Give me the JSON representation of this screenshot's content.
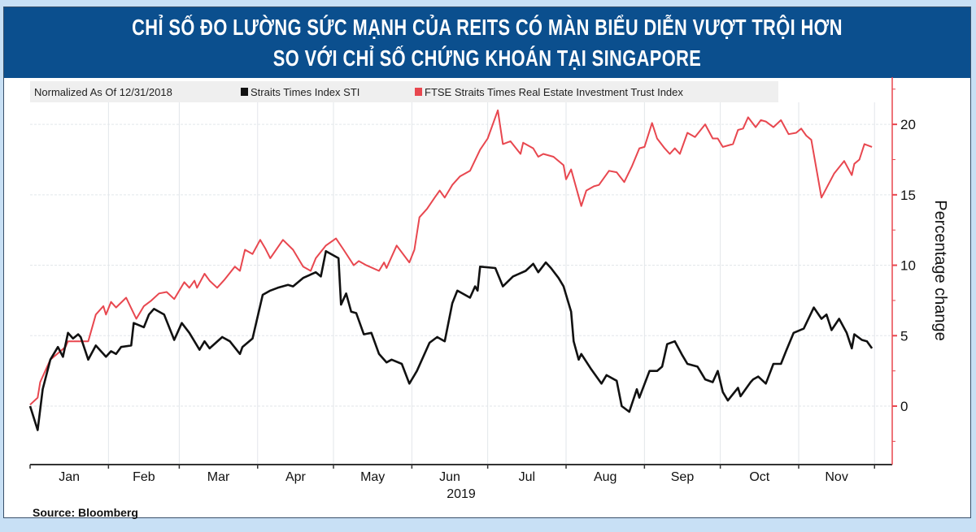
{
  "header": {
    "title_line1": "CHỈ SỐ ĐO LƯỜNG SỨC MẠNH CỦA REITS CÓ MÀN BIỂU DIỄN VƯỢT TRỘI HƠN",
    "title_line2": "SO VỚI CHỈ SỐ CHỨNG KHOÁN TẠI SINGAPORE"
  },
  "source": "Source: Bloomberg",
  "colors": {
    "title_bar": "#0b4f8e",
    "background": "#c8e0f5",
    "sti": "#111111",
    "reit": "#e8474f",
    "axis": "#e8474f"
  },
  "chart_data": {
    "type": "line",
    "legend_note": "Normalized As Of 12/31/2018",
    "legend_position": "top-left",
    "xlabel": "2019",
    "ylabel": "Percentage change",
    "x_ticks": [
      "Jan",
      "Feb",
      "Mar",
      "Apr",
      "May",
      "Jun",
      "Jul",
      "Aug",
      "Sep",
      "Oct",
      "Nov"
    ],
    "xlim": [
      "2019-01-01",
      "2019-12-08"
    ],
    "ylim": [
      -4.15,
      23.35
    ],
    "y_ticks": [
      0,
      5,
      10,
      15,
      20
    ],
    "grid": true,
    "y_axis_side": "right",
    "series": [
      {
        "name": "Straits Times Index STI",
        "color": "#111111",
        "points": [
          [
            "2019-01-01",
            0
          ],
          [
            "2019-01-04",
            -1.7
          ],
          [
            "2019-01-06",
            1.2
          ],
          [
            "2019-01-09",
            3.3
          ],
          [
            "2019-01-12",
            4.2
          ],
          [
            "2019-01-14",
            3.5
          ],
          [
            "2019-01-16",
            5.2
          ],
          [
            "2019-01-18",
            4.8
          ],
          [
            "2019-01-20",
            5.1
          ],
          [
            "2019-01-21",
            4.9
          ],
          [
            "2019-01-24",
            3.3
          ],
          [
            "2019-01-27",
            4.3
          ],
          [
            "2019-01-31",
            3.5
          ],
          [
            "2019-02-02",
            3.9
          ],
          [
            "2019-02-04",
            3.7
          ],
          [
            "2019-02-06",
            4.2
          ],
          [
            "2019-02-10",
            4.3
          ],
          [
            "2019-02-11",
            5.9
          ],
          [
            "2019-02-15",
            5.6
          ],
          [
            "2019-02-17",
            6.5
          ],
          [
            "2019-02-19",
            6.9
          ],
          [
            "2019-02-23",
            6.5
          ],
          [
            "2019-02-27",
            4.7
          ],
          [
            "2019-03-02",
            5.9
          ],
          [
            "2019-03-05",
            5.2
          ],
          [
            "2019-03-09",
            4.0
          ],
          [
            "2019-03-11",
            4.6
          ],
          [
            "2019-03-13",
            4.1
          ],
          [
            "2019-03-18",
            4.9
          ],
          [
            "2019-03-21",
            4.6
          ],
          [
            "2019-03-25",
            3.7
          ],
          [
            "2019-03-26",
            4.2
          ],
          [
            "2019-03-30",
            4.8
          ],
          [
            "2019-04-03",
            7.9
          ],
          [
            "2019-04-06",
            8.2
          ],
          [
            "2019-04-09",
            8.4
          ],
          [
            "2019-04-13",
            8.6
          ],
          [
            "2019-04-15",
            8.5
          ],
          [
            "2019-04-19",
            9.1
          ],
          [
            "2019-04-24",
            9.5
          ],
          [
            "2019-04-26",
            9.2
          ],
          [
            "2019-04-28",
            11.0
          ],
          [
            "2019-05-03",
            10.5
          ],
          [
            "2019-05-04",
            7.2
          ],
          [
            "2019-05-06",
            8.0
          ],
          [
            "2019-05-08",
            6.7
          ],
          [
            "2019-05-10",
            6.6
          ],
          [
            "2019-05-13",
            5.1
          ],
          [
            "2019-05-16",
            5.2
          ],
          [
            "2019-05-19",
            3.7
          ],
          [
            "2019-05-22",
            3.1
          ],
          [
            "2019-05-24",
            3.3
          ],
          [
            "2019-05-28",
            3.0
          ],
          [
            "2019-05-31",
            1.6
          ],
          [
            "2019-06-03",
            2.5
          ],
          [
            "2019-06-08",
            4.5
          ],
          [
            "2019-06-11",
            4.9
          ],
          [
            "2019-06-14",
            4.6
          ],
          [
            "2019-06-17",
            7.3
          ],
          [
            "2019-06-19",
            8.2
          ],
          [
            "2019-06-24",
            7.7
          ],
          [
            "2019-06-26",
            8.5
          ],
          [
            "2019-06-27",
            8.2
          ],
          [
            "2019-06-28",
            9.9
          ],
          [
            "2019-07-04",
            9.8
          ],
          [
            "2019-07-07",
            8.5
          ],
          [
            "2019-07-11",
            9.2
          ],
          [
            "2019-07-16",
            9.6
          ],
          [
            "2019-07-19",
            10.1
          ],
          [
            "2019-07-21",
            9.5
          ],
          [
            "2019-07-24",
            10.2
          ],
          [
            "2019-07-26",
            9.8
          ],
          [
            "2019-07-29",
            9.1
          ],
          [
            "2019-07-31",
            8.5
          ],
          [
            "2019-08-03",
            6.7
          ],
          [
            "2019-08-04",
            4.6
          ],
          [
            "2019-08-06",
            3.3
          ],
          [
            "2019-08-07",
            3.7
          ],
          [
            "2019-08-11",
            2.6
          ],
          [
            "2019-08-15",
            1.6
          ],
          [
            "2019-08-17",
            2.2
          ],
          [
            "2019-08-21",
            1.8
          ],
          [
            "2019-08-23",
            0
          ],
          [
            "2019-08-26",
            -0.4
          ],
          [
            "2019-08-29",
            1.2
          ],
          [
            "2019-08-30",
            0.6
          ],
          [
            "2019-09-03",
            2.5
          ],
          [
            "2019-09-06",
            2.5
          ],
          [
            "2019-09-08",
            2.8
          ],
          [
            "2019-09-10",
            4.4
          ],
          [
            "2019-09-13",
            4.6
          ],
          [
            "2019-09-16",
            3.6
          ],
          [
            "2019-09-18",
            3.0
          ],
          [
            "2019-09-22",
            2.8
          ],
          [
            "2019-09-23",
            2.5
          ],
          [
            "2019-09-25",
            1.9
          ],
          [
            "2019-09-28",
            1.7
          ],
          [
            "2019-09-30",
            2.5
          ],
          [
            "2019-10-02",
            1.0
          ],
          [
            "2019-10-04",
            0.4
          ],
          [
            "2019-10-08",
            1.3
          ],
          [
            "2019-10-09",
            0.7
          ],
          [
            "2019-10-13",
            1.7
          ],
          [
            "2019-10-14",
            1.9
          ],
          [
            "2019-10-16",
            2.1
          ],
          [
            "2019-10-19",
            1.6
          ],
          [
            "2019-10-22",
            3.0
          ],
          [
            "2019-10-25",
            3.0
          ],
          [
            "2019-10-27",
            3.9
          ],
          [
            "2019-10-30",
            5.2
          ],
          [
            "2019-11-03",
            5.5
          ],
          [
            "2019-11-07",
            7.0
          ],
          [
            "2019-11-10",
            6.2
          ],
          [
            "2019-11-12",
            6.5
          ],
          [
            "2019-11-14",
            5.4
          ],
          [
            "2019-11-17",
            6.2
          ],
          [
            "2019-11-20",
            5.2
          ],
          [
            "2019-11-22",
            4.1
          ],
          [
            "2019-11-23",
            5.1
          ],
          [
            "2019-11-26",
            4.7
          ],
          [
            "2019-11-28",
            4.6
          ],
          [
            "2019-11-30",
            4.1
          ]
        ]
      },
      {
        "name": "FTSE Straits Times Real Estate Investment Trust Index",
        "color": "#e8474f",
        "points": [
          [
            "2019-01-01",
            0.1
          ],
          [
            "2019-01-04",
            0.6
          ],
          [
            "2019-01-05",
            1.7
          ],
          [
            "2019-01-06",
            2.1
          ],
          [
            "2019-01-09",
            3.3
          ],
          [
            "2019-01-13",
            3.9
          ],
          [
            "2019-01-15",
            4.2
          ],
          [
            "2019-01-16",
            4.6
          ],
          [
            "2019-01-24",
            4.6
          ],
          [
            "2019-01-27",
            6.5
          ],
          [
            "2019-01-30",
            7.1
          ],
          [
            "2019-01-31",
            6.5
          ],
          [
            "2019-02-02",
            7.4
          ],
          [
            "2019-02-04",
            7.0
          ],
          [
            "2019-02-08",
            7.7
          ],
          [
            "2019-02-12",
            6.2
          ],
          [
            "2019-02-15",
            7.1
          ],
          [
            "2019-02-18",
            7.5
          ],
          [
            "2019-02-21",
            8.0
          ],
          [
            "2019-02-24",
            8.1
          ],
          [
            "2019-02-27",
            7.6
          ],
          [
            "2019-03-03",
            8.8
          ],
          [
            "2019-03-05",
            8.4
          ],
          [
            "2019-03-07",
            8.9
          ],
          [
            "2019-03-08",
            8.4
          ],
          [
            "2019-03-11",
            9.4
          ],
          [
            "2019-03-13",
            8.9
          ],
          [
            "2019-03-16",
            8.4
          ],
          [
            "2019-03-19",
            9.0
          ],
          [
            "2019-03-23",
            9.9
          ],
          [
            "2019-03-25",
            9.6
          ],
          [
            "2019-03-27",
            11.1
          ],
          [
            "2019-03-30",
            10.8
          ],
          [
            "2019-04-02",
            11.8
          ],
          [
            "2019-04-04",
            11.2
          ],
          [
            "2019-04-06",
            10.5
          ],
          [
            "2019-04-11",
            11.8
          ],
          [
            "2019-04-15",
            11.1
          ],
          [
            "2019-04-19",
            9.9
          ],
          [
            "2019-04-22",
            9.6
          ],
          [
            "2019-04-24",
            10.5
          ],
          [
            "2019-04-28",
            11.4
          ],
          [
            "2019-05-02",
            11.9
          ],
          [
            "2019-05-05",
            11.1
          ],
          [
            "2019-05-09",
            10.0
          ],
          [
            "2019-05-11",
            10.3
          ],
          [
            "2019-05-14",
            10.0
          ],
          [
            "2019-05-19",
            9.6
          ],
          [
            "2019-05-21",
            10.2
          ],
          [
            "2019-05-22",
            9.8
          ],
          [
            "2019-05-26",
            11.4
          ],
          [
            "2019-05-31",
            10.2
          ],
          [
            "2019-06-02",
            11.1
          ],
          [
            "2019-06-04",
            13.4
          ],
          [
            "2019-06-07",
            14.0
          ],
          [
            "2019-06-10",
            14.8
          ],
          [
            "2019-06-12",
            15.3
          ],
          [
            "2019-06-14",
            14.8
          ],
          [
            "2019-06-17",
            15.7
          ],
          [
            "2019-06-20",
            16.3
          ],
          [
            "2019-06-24",
            16.7
          ],
          [
            "2019-06-28",
            18.2
          ],
          [
            "2019-07-01",
            19.0
          ],
          [
            "2019-07-05",
            21.0
          ],
          [
            "2019-07-07",
            18.6
          ],
          [
            "2019-07-10",
            18.8
          ],
          [
            "2019-07-14",
            17.9
          ],
          [
            "2019-07-15",
            18.7
          ],
          [
            "2019-07-19",
            18.3
          ],
          [
            "2019-07-21",
            17.7
          ],
          [
            "2019-07-23",
            17.9
          ],
          [
            "2019-07-27",
            17.7
          ],
          [
            "2019-07-31",
            17.1
          ],
          [
            "2019-08-01",
            16.1
          ],
          [
            "2019-08-03",
            16.8
          ],
          [
            "2019-08-07",
            14.2
          ],
          [
            "2019-08-09",
            15.3
          ],
          [
            "2019-08-12",
            15.6
          ],
          [
            "2019-08-14",
            15.7
          ],
          [
            "2019-08-18",
            16.7
          ],
          [
            "2019-08-21",
            16.6
          ],
          [
            "2019-08-24",
            15.9
          ],
          [
            "2019-08-27",
            17.0
          ],
          [
            "2019-08-30",
            18.3
          ],
          [
            "2019-09-01",
            18.4
          ],
          [
            "2019-09-04",
            20.1
          ],
          [
            "2019-09-06",
            19.0
          ],
          [
            "2019-09-09",
            18.3
          ],
          [
            "2019-09-11",
            17.9
          ],
          [
            "2019-09-13",
            18.3
          ],
          [
            "2019-09-15",
            17.9
          ],
          [
            "2019-09-18",
            19.4
          ],
          [
            "2019-09-21",
            19.1
          ],
          [
            "2019-09-25",
            20.0
          ],
          [
            "2019-09-28",
            19.0
          ],
          [
            "2019-09-30",
            19.0
          ],
          [
            "2019-10-02",
            18.4
          ],
          [
            "2019-10-06",
            18.6
          ],
          [
            "2019-10-08",
            19.6
          ],
          [
            "2019-10-10",
            19.7
          ],
          [
            "2019-10-12",
            20.5
          ],
          [
            "2019-10-15",
            19.8
          ],
          [
            "2019-10-17",
            20.3
          ],
          [
            "2019-10-19",
            20.2
          ],
          [
            "2019-10-22",
            19.8
          ],
          [
            "2019-10-25",
            20.3
          ],
          [
            "2019-10-28",
            19.3
          ],
          [
            "2019-10-31",
            19.4
          ],
          [
            "2019-11-02",
            19.7
          ],
          [
            "2019-11-04",
            19.2
          ],
          [
            "2019-11-06",
            18.9
          ],
          [
            "2019-11-10",
            14.8
          ],
          [
            "2019-11-15",
            16.5
          ],
          [
            "2019-11-19",
            17.4
          ],
          [
            "2019-11-22",
            16.4
          ],
          [
            "2019-11-23",
            17.2
          ],
          [
            "2019-11-25",
            17.5
          ],
          [
            "2019-11-27",
            18.6
          ],
          [
            "2019-11-30",
            18.4
          ]
        ]
      }
    ]
  }
}
